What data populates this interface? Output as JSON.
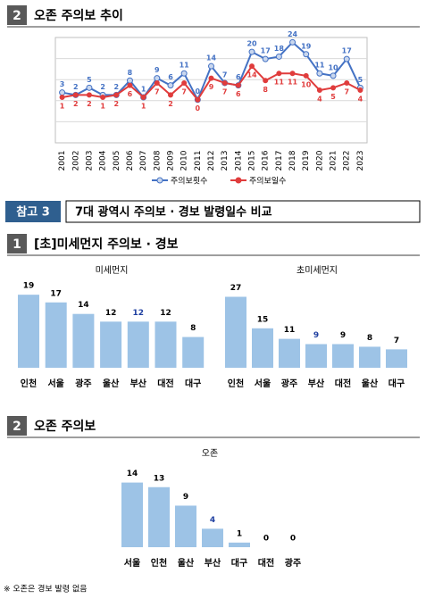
{
  "sections": [
    {
      "number": "2",
      "title": "오존 주의보 추이"
    },
    {
      "number": "참고 3",
      "title": "7대 광역시 주의보 · 경보 발령일수 비교"
    },
    {
      "number": "1",
      "title": "[초]미세먼지 주의보 · 경보"
    },
    {
      "number": "2",
      "title": "오존 주의보"
    }
  ],
  "chart_data": [
    {
      "type": "line",
      "categories": [
        "2001",
        "2002",
        "2003",
        "2004",
        "2005",
        "2006",
        "2007",
        "2008",
        "2009",
        "2010",
        "2011",
        "2012",
        "2013",
        "2014",
        "2015",
        "2016",
        "2017",
        "2018",
        "2019",
        "2020",
        "2021",
        "2022",
        "2023"
      ],
      "series": [
        {
          "name": "주의보횟수",
          "color": "#4472c4",
          "values": [
            3,
            2,
            5,
            2,
            2,
            8,
            1,
            9,
            6,
            11,
            0,
            14,
            7,
            6,
            20,
            17,
            18,
            24,
            19,
            11,
            10,
            17,
            5
          ]
        },
        {
          "name": "주의보일수",
          "color": "#e03c3c",
          "values": [
            1,
            2,
            2,
            1,
            2,
            6,
            1,
            7,
            2,
            7,
            0,
            9,
            7,
            6,
            14,
            8,
            11,
            11,
            10,
            4,
            5,
            7,
            4
          ]
        }
      ],
      "ylim": [
        -18,
        26
      ],
      "grid": true,
      "legend": "bottom"
    },
    {
      "type": "bar",
      "title": "미세먼지",
      "categories": [
        "인천",
        "서울",
        "광주",
        "울산",
        "부산",
        "대전",
        "대구"
      ],
      "values": [
        19,
        17,
        14,
        12,
        12,
        12,
        8
      ],
      "color": "#9dc3e6",
      "value_label_colors": [
        "#000000",
        "#000000",
        "#000000",
        "#000000",
        "#1f3fa0",
        "#000000",
        "#000000"
      ],
      "ylim": [
        0,
        19.5
      ]
    },
    {
      "type": "bar",
      "title": "초미세먼지",
      "categories": [
        "인천",
        "서울",
        "광주",
        "부산",
        "대전",
        "울산",
        "대구"
      ],
      "values": [
        27,
        15,
        11,
        9,
        9,
        8,
        7
      ],
      "color": "#9dc3e6",
      "value_label_colors": [
        "#000000",
        "#000000",
        "#000000",
        "#1f3fa0",
        "#000000",
        "#000000",
        "#000000"
      ],
      "ylim": [
        0,
        27.5
      ]
    },
    {
      "type": "bar",
      "title": "오존",
      "categories": [
        "서울",
        "인천",
        "울산",
        "부산",
        "대구",
        "대전",
        "광주"
      ],
      "values": [
        14,
        13,
        9,
        4,
        1,
        0,
        0
      ],
      "color": "#9dc3e6",
      "value_label_colors": [
        "#000000",
        "#000000",
        "#000000",
        "#1f3fa0",
        "#000000",
        "#000000",
        "#000000"
      ],
      "ylim": [
        0,
        14.5
      ]
    }
  ],
  "note": "※ 오존은 경보 발령 없음"
}
